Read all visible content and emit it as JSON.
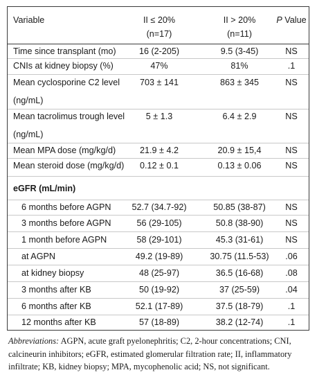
{
  "header": {
    "variable": "Variable",
    "group1": "II ≤ 20%",
    "group1_n": "(n=17)",
    "group2": "II > 20%",
    "group2_n": "(n=11)",
    "p_italic": "P",
    "p_rest": " Value"
  },
  "rows": [
    {
      "label": "Time since transplant (mo)",
      "g1": "16 (2-205)",
      "g2": "9.5 (3-45)",
      "p": "NS"
    },
    {
      "label": "CNIs at kidney biopsy (%)",
      "g1": "47%",
      "g2": "81%",
      "p": ".1"
    },
    {
      "label": "Mean cyclosporine C2 level",
      "label2": "(ng/mL)",
      "g1": "703 ± 141",
      "g2": "863 ± 345",
      "p": "NS"
    },
    {
      "label": "Mean tacrolimus trough level",
      "label2": "(ng/mL)",
      "g1": "5 ± 1.3",
      "g2": "6.4 ± 2.9",
      "p": "NS"
    },
    {
      "label": "Mean MPA dose (mg/kg/d)",
      "g1": "21.9 ± 4.2",
      "g2": "20.9 ± 15,4",
      "p": "NS"
    },
    {
      "label": "Mean steroid dose (mg/kg/d)",
      "g1": "0.12 ± 0.1",
      "g2": "0.13 ± 0.06",
      "p": "NS"
    }
  ],
  "egfr": {
    "heading": "eGFR (mL/min)",
    "rows": [
      {
        "label": "6 months before AGPN",
        "g1": "52.7 (34.7-92)",
        "g2": "50.85 (38-87)",
        "p": "NS"
      },
      {
        "label": "3 months before AGPN",
        "g1": "56 (29-105)",
        "g2": "50.8 (38-90)",
        "p": "NS"
      },
      {
        "label": "1 month before AGPN",
        "g1": "58 (29-101)",
        "g2": "45.3 (31-61)",
        "p": "NS"
      },
      {
        "label": "at AGPN",
        "g1": "49.2 (19-89)",
        "g2": "30.75 (11.5-53)",
        "p": ".06"
      },
      {
        "label": "at kidney biopsy",
        "g1": "48 (25-97)",
        "g2": "36.5 (16-68)",
        "p": ".08"
      },
      {
        "label": "3 months after KB",
        "g1": "50 (19-92)",
        "g2": "37 (25-59)",
        "p": ".04"
      },
      {
        "label": "6 months after KB",
        "g1": "52.1 (17-89)",
        "g2": "37.5 (18-79)",
        "p": ".1"
      },
      {
        "label": "12 months after KB",
        "g1": "57 (18-89)",
        "g2": "38.2 (12-74)",
        "p": ".1"
      }
    ]
  },
  "footnote": {
    "heading": "Abbreviations:",
    "text": " AGPN, acute graft pyelonephritis; C2, 2-hour concentrations; CNI, calcineurin inhibitors; eGFR, estimated glomerular filtration rate; II, inflammatory infiltrate; KB, kidney biopsy; MPA, mycophenolic acid; NS, not significant."
  }
}
